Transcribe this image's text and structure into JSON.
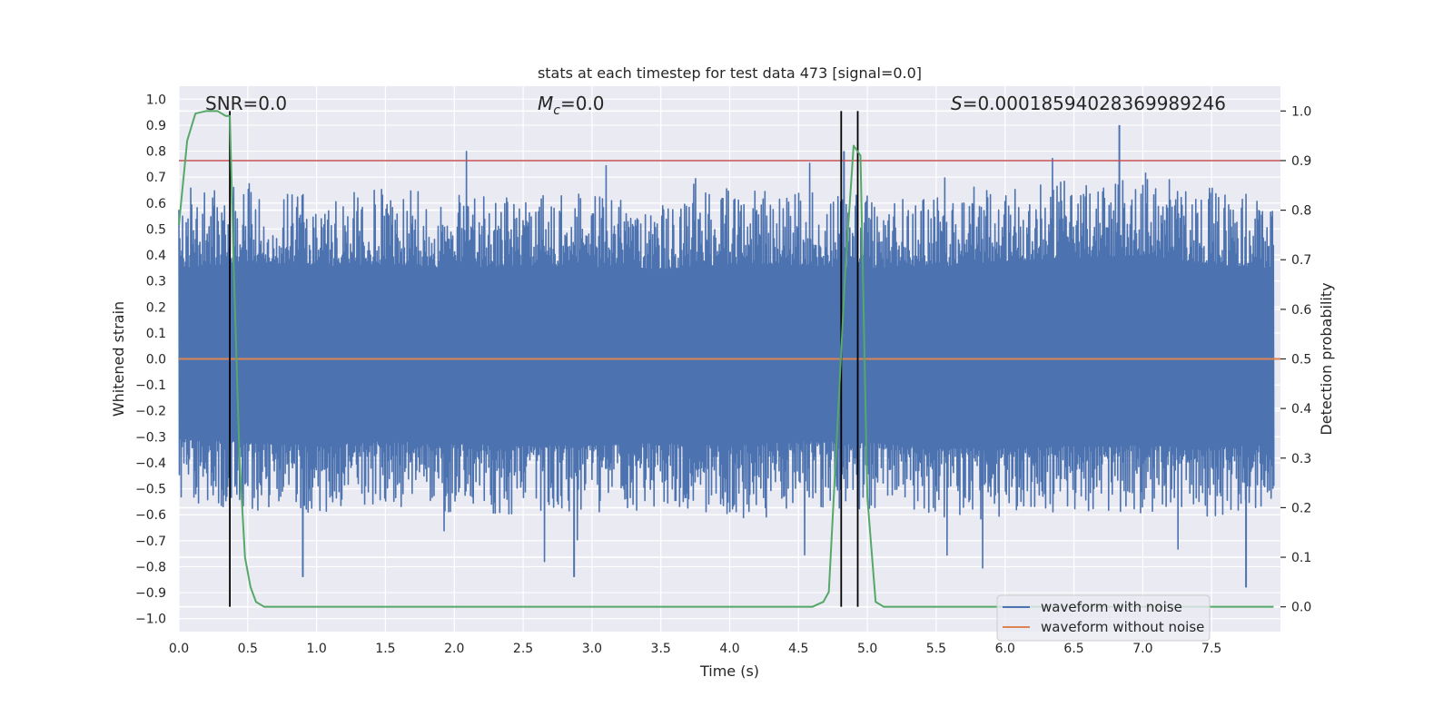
{
  "chart_data": {
    "type": "line",
    "title": "stats at each timestep for test data 473 [signal=0.0]",
    "xlabel": "Time (s)",
    "ylabel": "Whitened strain",
    "y2label": "Detection probability",
    "xlim": [
      0,
      8
    ],
    "ylim": [
      -1.05,
      1.05
    ],
    "y2lim": [
      -0.05,
      1.05
    ],
    "xticks": [
      "0.0",
      "0.5",
      "1.0",
      "1.5",
      "2.0",
      "2.5",
      "3.0",
      "3.5",
      "4.0",
      "4.5",
      "5.0",
      "5.5",
      "6.0",
      "6.5",
      "7.0",
      "7.5"
    ],
    "yticks": [
      "-1.0",
      "-0.9",
      "-0.8",
      "-0.7",
      "-0.6",
      "-0.5",
      "-0.4",
      "-0.3",
      "-0.2",
      "-0.1",
      "0.0",
      "0.1",
      "0.2",
      "0.3",
      "0.4",
      "0.5",
      "0.6",
      "0.7",
      "0.8",
      "0.9",
      "1.0"
    ],
    "y2ticks": [
      "0.0",
      "0.1",
      "0.2",
      "0.3",
      "0.4",
      "0.5",
      "0.6",
      "0.7",
      "0.8",
      "0.9",
      "1.0"
    ],
    "grid": true,
    "legend_position": "bottom-right",
    "annotations": {
      "snr": "SNR=0.0",
      "mc_symbol": "M",
      "mc_sub": "c",
      "mc_value": "=0.0",
      "s_symbol": "S",
      "s_value": "=0.00018594028369989246"
    },
    "series": [
      {
        "name": "waveform with noise",
        "color": "#4c72b0",
        "axis": "left",
        "style": "noise",
        "envelope_x": [
          0,
          0.5,
          1,
          1.5,
          2,
          2.5,
          3,
          3.5,
          4,
          4.5,
          5,
          5.5,
          6,
          6.5,
          7,
          7.5,
          8
        ],
        "envelope_upper": [
          0.62,
          0.68,
          0.64,
          0.66,
          0.63,
          0.65,
          0.64,
          0.62,
          0.66,
          0.65,
          0.63,
          0.64,
          0.68,
          0.7,
          0.72,
          0.66,
          0.62
        ],
        "envelope_lower": [
          -0.55,
          -0.58,
          -0.6,
          -0.57,
          -0.59,
          -0.6,
          -0.6,
          -0.58,
          -0.6,
          -0.57,
          -0.58,
          -0.62,
          -0.62,
          -0.6,
          -0.6,
          -0.62,
          -0.58
        ]
      },
      {
        "name": "waveform without noise",
        "color": "#dd8452",
        "axis": "left",
        "x": [
          0,
          8
        ],
        "y": [
          0.0,
          0.0
        ]
      },
      {
        "name": "detection probability",
        "color": "#55a868",
        "axis": "right",
        "x": [
          0,
          0.06,
          0.12,
          0.2,
          0.28,
          0.34,
          0.37,
          0.4,
          0.44,
          0.48,
          0.52,
          0.56,
          0.62,
          0.7,
          1.0,
          2.0,
          3.0,
          4.0,
          4.6,
          4.68,
          4.72,
          4.78,
          4.84,
          4.9,
          4.95,
          5.0,
          5.06,
          5.12,
          5.3,
          6.0,
          7.0,
          7.95
        ],
        "y": [
          0.77,
          0.94,
          0.995,
          1.0,
          1.0,
          0.99,
          0.99,
          0.67,
          0.3,
          0.1,
          0.04,
          0.01,
          0.0,
          0.0,
          0.0,
          0.0,
          0.0,
          0.0,
          0.0,
          0.01,
          0.03,
          0.35,
          0.68,
          0.93,
          0.91,
          0.22,
          0.01,
          0.0,
          0.0,
          0.0,
          0.0,
          0.0
        ]
      }
    ],
    "hlines": [
      {
        "y": 0.9,
        "axis": "right",
        "color": "#c44e52"
      }
    ],
    "vlines": [
      {
        "x": 0.37,
        "color": "#000000"
      },
      {
        "x": 4.81,
        "color": "#000000"
      },
      {
        "x": 4.93,
        "color": "#000000"
      }
    ],
    "outliers": [
      {
        "x": 7.75,
        "y": -0.88
      },
      {
        "x": 4.83,
        "y": 0.8
      },
      {
        "x": 0.9,
        "y": -0.84
      },
      {
        "x": 2.87,
        "y": -0.84
      },
      {
        "x": 6.83,
        "y": 0.9
      }
    ],
    "legend": [
      "waveform with noise",
      "waveform without noise"
    ]
  }
}
